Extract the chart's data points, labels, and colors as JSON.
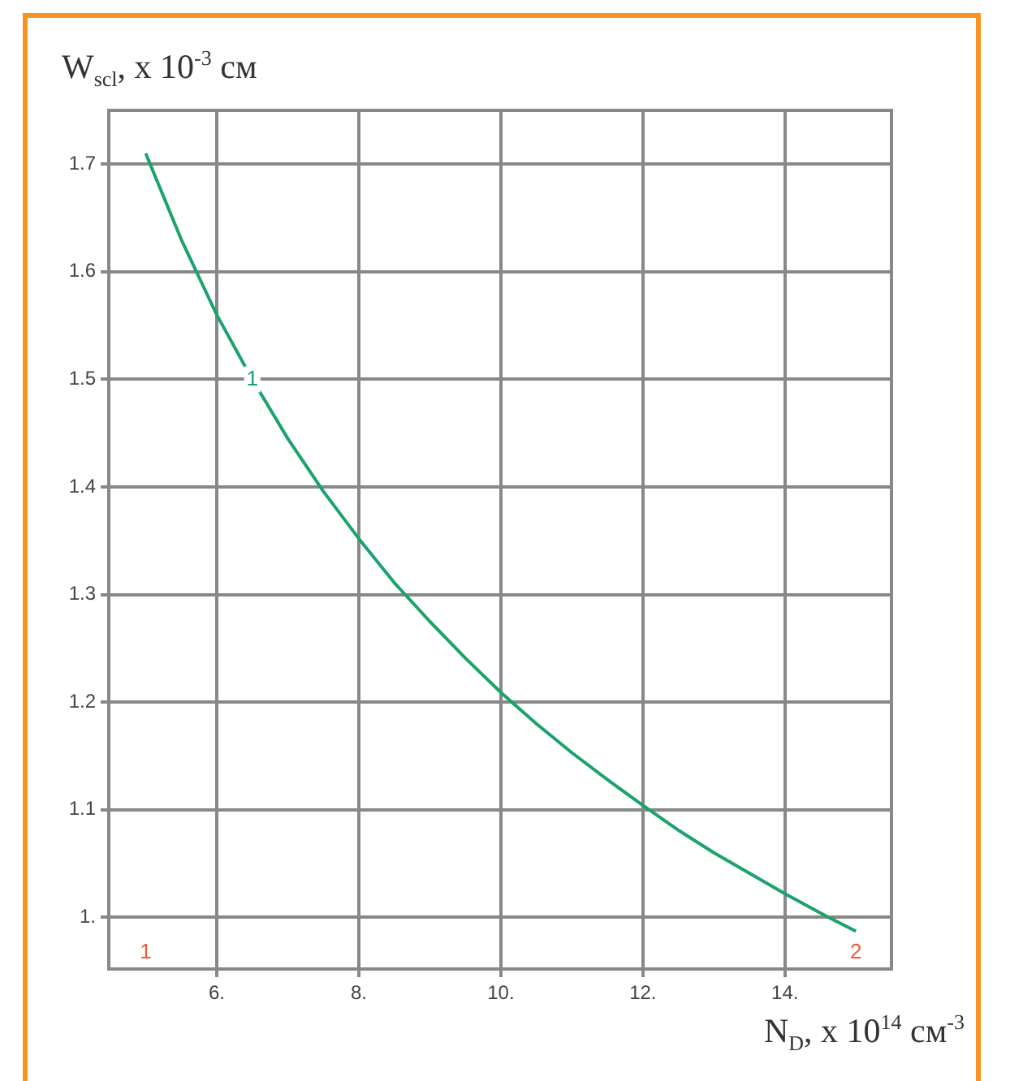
{
  "chart_data": {
    "type": "line",
    "xlabel": "N$_{D}$, x 10$^{14}$ см$^{-3}$",
    "ylabel": "W$_{scl}$, x 10$^{-3}$ см",
    "x": [
      5,
      5.5,
      6,
      6.5,
      7,
      7.5,
      8,
      8.5,
      9,
      9.5,
      10,
      10.5,
      11,
      11.5,
      12,
      12.5,
      13,
      13.5,
      14,
      14.5,
      15
    ],
    "series": [
      {
        "name": "1",
        "color": "#1aa36a",
        "values": [
          1.71,
          1.63,
          1.56,
          1.5,
          1.445,
          1.396,
          1.352,
          1.311,
          1.275,
          1.241,
          1.209,
          1.18,
          1.153,
          1.128,
          1.104,
          1.081,
          1.06,
          1.041,
          1.022,
          1.004,
          0.987
        ]
      }
    ],
    "xlim": [
      4.48,
      15.5
    ],
    "ylim": [
      0.952,
      1.75
    ],
    "xticks": [
      {
        "value": 6,
        "label": "6."
      },
      {
        "value": 8,
        "label": "8."
      },
      {
        "value": 10,
        "label": "10."
      },
      {
        "value": 12,
        "label": "12."
      },
      {
        "value": 14,
        "label": "14."
      }
    ],
    "yticks": [
      {
        "value": 1,
        "label": "1."
      },
      1.1,
      1.2,
      1.3,
      1.4,
      1.5,
      1.6,
      1.7
    ],
    "grid": true,
    "legend": false,
    "marker": "none",
    "line_style": "solid",
    "annotations": [
      "1",
      "2"
    ]
  }
}
